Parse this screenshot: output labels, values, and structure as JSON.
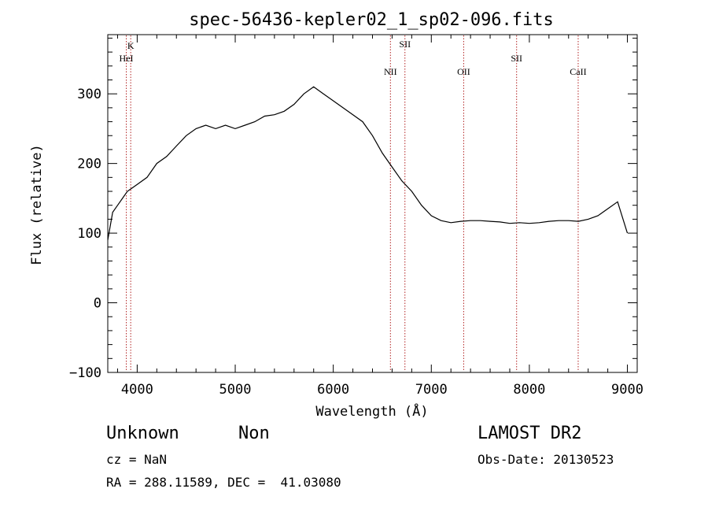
{
  "chart_data": {
    "type": "line",
    "title": "spec-56436-kepler02_1_sp02-096.fits",
    "xlabel": "Wavelength (Å)",
    "ylabel": "Flux (relative)",
    "xlim": [
      3700,
      9100
    ],
    "ylim": [
      -100,
      385
    ],
    "x_ticks": [
      4000,
      5000,
      6000,
      7000,
      8000,
      9000
    ],
    "y_ticks": [
      -100,
      0,
      100,
      200,
      300
    ],
    "grid": false,
    "line_color": "#000000",
    "marker_color": "#b22222",
    "series": [
      {
        "x": [
          3700,
          3750,
          3800,
          3850,
          3900,
          3950,
          4000,
          4100,
          4200,
          4300,
          4400,
          4500,
          4600,
          4700,
          4800,
          4900,
          5000,
          5100,
          5200,
          5300,
          5400,
          5500,
          5600,
          5700,
          5800,
          5900,
          6000,
          6100,
          6200,
          6300,
          6400,
          6500,
          6600,
          6700,
          6800,
          6900,
          7000,
          7100,
          7200,
          7300,
          7400,
          7500,
          7600,
          7700,
          7800,
          7900,
          8000,
          8100,
          8200,
          8300,
          8400,
          8500,
          8600,
          8700,
          8800,
          8900,
          9000
        ],
        "y": [
          90,
          130,
          140,
          150,
          160,
          165,
          170,
          180,
          200,
          210,
          225,
          240,
          250,
          255,
          250,
          255,
          250,
          255,
          260,
          268,
          270,
          275,
          285,
          300,
          310,
          300,
          290,
          280,
          270,
          260,
          240,
          215,
          195,
          175,
          160,
          140,
          125,
          118,
          115,
          117,
          118,
          118,
          117,
          116,
          114,
          115,
          114,
          115,
          117,
          118,
          118,
          117,
          120,
          125,
          135,
          145,
          100
        ]
      }
    ],
    "lines": [
      {
        "label": "K",
        "x": 3934
      },
      {
        "label": "HeI",
        "x": 3889
      },
      {
        "label": "NII",
        "x": 6583
      },
      {
        "label": "SII",
        "x": 6731
      },
      {
        "label": "OII",
        "x": 7330
      },
      {
        "label": "SII",
        "x": 7870
      },
      {
        "label": "CaII",
        "x": 8498
      }
    ]
  },
  "info": {
    "class_name": "Unknown",
    "subclass": "Non",
    "survey": "LAMOST DR2",
    "cz": "cz = NaN",
    "obs_date": "Obs-Date: 20130523",
    "coords": "RA = 288.11589, DEC =  41.03080"
  }
}
